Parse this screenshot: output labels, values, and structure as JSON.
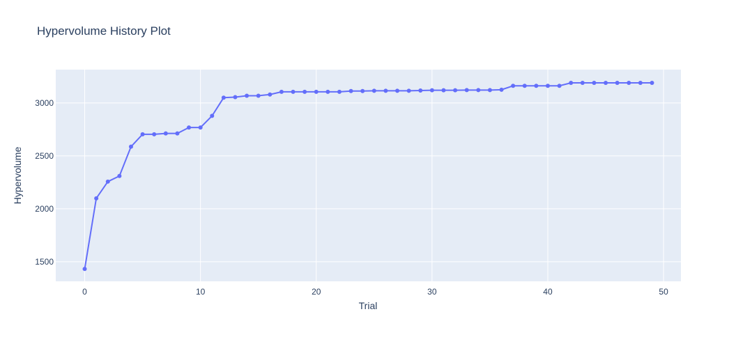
{
  "chart_data": {
    "type": "line",
    "title": "Hypervolume History Plot",
    "xlabel": "Trial",
    "ylabel": "Hypervolume",
    "xlim": [
      -2.5,
      51.5
    ],
    "ylim": [
      1315,
      3315
    ],
    "xticks": [
      0,
      10,
      20,
      30,
      40,
      50
    ],
    "yticks": [
      1500,
      2000,
      2500,
      3000
    ],
    "grid": true,
    "legend": "none",
    "series": [
      {
        "color": "#636efa",
        "marker": "circle",
        "x": [
          0,
          1,
          2,
          3,
          4,
          5,
          6,
          7,
          8,
          9,
          10,
          11,
          12,
          13,
          14,
          15,
          16,
          17,
          18,
          19,
          20,
          21,
          22,
          23,
          24,
          25,
          26,
          27,
          28,
          29,
          30,
          31,
          32,
          33,
          34,
          35,
          36,
          37,
          38,
          39,
          40,
          41,
          42,
          43,
          44,
          45,
          46,
          47,
          48,
          49
        ],
        "values": [
          1432,
          2099,
          2257,
          2310,
          2587,
          2704,
          2704,
          2712,
          2712,
          2768,
          2768,
          2878,
          3050,
          3055,
          3068,
          3068,
          3080,
          3105,
          3105,
          3105,
          3105,
          3105,
          3105,
          3113,
          3113,
          3115,
          3115,
          3115,
          3115,
          3118,
          3120,
          3120,
          3120,
          3122,
          3122,
          3122,
          3125,
          3162,
          3162,
          3162,
          3162,
          3162,
          3190,
          3190,
          3190,
          3190,
          3190,
          3190,
          3190,
          3190
        ]
      }
    ]
  }
}
